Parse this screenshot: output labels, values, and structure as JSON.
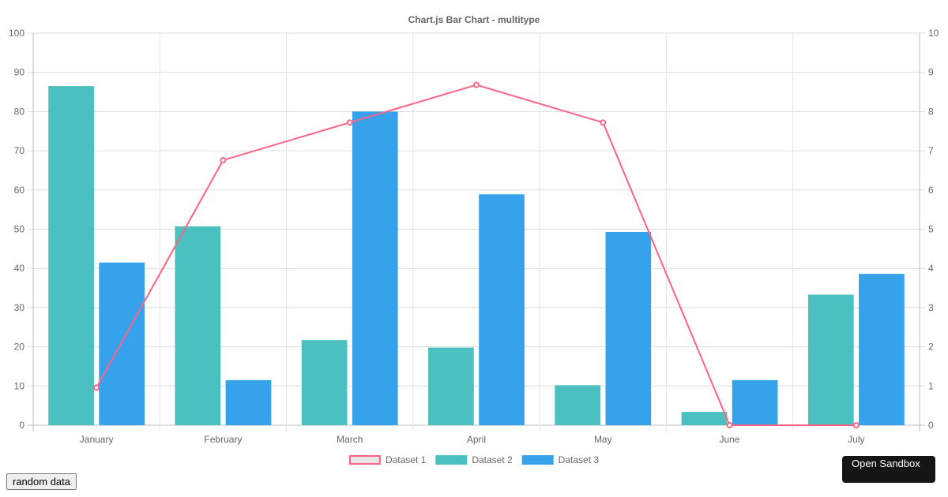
{
  "chart_data": {
    "type": "bar",
    "title": "Chart.js Bar Chart - multitype",
    "categories": [
      "January",
      "February",
      "March",
      "April",
      "May",
      "June",
      "July"
    ],
    "series": [
      {
        "name": "Dataset 1",
        "type": "line",
        "axis": "right",
        "color": "#ff6384",
        "values": [
          0.96,
          6.76,
          7.72,
          8.68,
          7.72,
          0,
          0
        ]
      },
      {
        "name": "Dataset 2",
        "type": "bar",
        "axis": "left",
        "color": "#4bc0c0",
        "values": [
          86.5,
          50.7,
          21.7,
          19.8,
          10.2,
          3.4,
          33.3
        ]
      },
      {
        "name": "Dataset 3",
        "type": "bar",
        "axis": "left",
        "color": "#36a2eb",
        "values": [
          41.5,
          11.5,
          80.0,
          58.9,
          49.3,
          11.5,
          38.6
        ]
      }
    ],
    "y_left": {
      "min": 0,
      "max": 100,
      "step": 10,
      "tick_labels": [
        "0",
        "10",
        "20",
        "30",
        "40",
        "50",
        "60",
        "70",
        "80",
        "90",
        "100"
      ]
    },
    "y_right": {
      "min": 0,
      "max": 10,
      "step": 1,
      "tick_labels": [
        "0",
        "1",
        "2",
        "3",
        "4",
        "5",
        "6",
        "7",
        "8",
        "9",
        "10"
      ]
    },
    "grid": true,
    "legend_position": "bottom"
  },
  "controls": {
    "random_data_label": "random data",
    "open_sandbox_label": "Open Sandbox"
  }
}
